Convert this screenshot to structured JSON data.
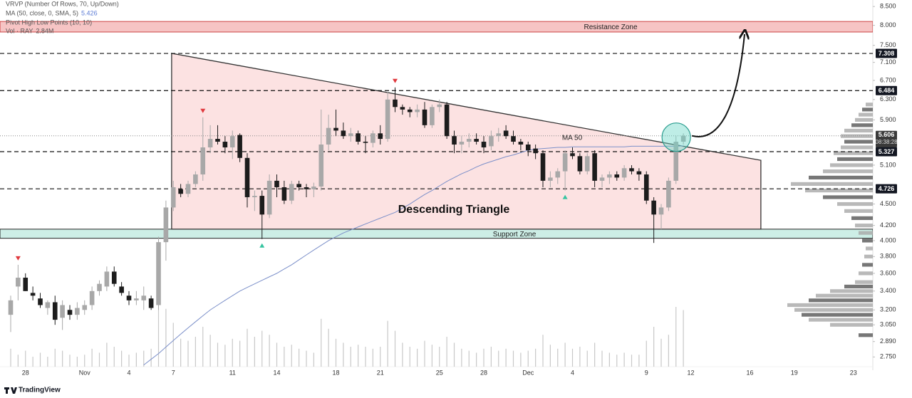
{
  "chart_data": {
    "type": "candlestick",
    "log_scale": true,
    "legend": [
      {
        "text": "VRVP (Number Of Rows, 70, Up/Down)"
      },
      {
        "text": "MA (50, close, 0, SMA, 5)"
      },
      {
        "text": "Pivot High Low Points (10, 10)"
      },
      {
        "text": "Vol · RAY",
        "value": "2.84M"
      }
    ],
    "categories": [
      null,
      null,
      "28",
      null,
      null,
      null,
      null,
      null,
      null,
      null,
      "Nov",
      null,
      null,
      null,
      null,
      null,
      "4",
      null,
      null,
      null,
      null,
      null,
      "7",
      null,
      null,
      null,
      null,
      null,
      null,
      null,
      "11",
      null,
      null,
      null,
      null,
      null,
      "14",
      null,
      null,
      null,
      null,
      null,
      null,
      null,
      "18",
      null,
      null,
      null,
      null,
      null,
      "21",
      null,
      null,
      null,
      null,
      null,
      null,
      null,
      "25",
      null,
      null,
      null,
      null,
      null,
      "28",
      null,
      null,
      null,
      null,
      null,
      "Dec",
      null,
      null,
      null,
      null,
      null,
      "4",
      null,
      null,
      null,
      null,
      null,
      null,
      null,
      null,
      null,
      "9",
      null,
      null,
      null,
      null,
      null,
      "12",
      null,
      null,
      null,
      null,
      null,
      null,
      null,
      "16",
      null,
      null,
      null,
      null,
      null,
      "19",
      null,
      null,
      null,
      null,
      null,
      null,
      null,
      "23",
      null
    ],
    "open": [
      3.15,
      3.45,
      3.55,
      3.38,
      3.32,
      3.22,
      3.28,
      3.12,
      3.2,
      3.15,
      3.2,
      3.25,
      3.4,
      3.45,
      3.62,
      3.45,
      3.35,
      3.3,
      3.3,
      3.32,
      3.25,
      3.98,
      4.45,
      4.72,
      4.65,
      4.8,
      4.95,
      5.4,
      5.55,
      5.5,
      5.4,
      5.62,
      5.22,
      4.6,
      4.62,
      4.35,
      4.85,
      4.75,
      4.55,
      4.8,
      4.75,
      4.72,
      4.76,
      5.45,
      5.75,
      5.7,
      5.6,
      5.65,
      5.5,
      5.48,
      5.65,
      5.55,
      6.3,
      6.15,
      6.1,
      6.05,
      6.1,
      5.8,
      6.15,
      6.2,
      5.6,
      5.45,
      5.5,
      5.55,
      5.5,
      5.42,
      5.6,
      5.7,
      5.6,
      5.5,
      5.45,
      5.38,
      5.3,
      4.85,
      4.9,
      5.0,
      5.3,
      5.25,
      5.0,
      5.3,
      4.85,
      4.9,
      4.95,
      4.9,
      5.05,
      5.0,
      4.95,
      4.55,
      4.35,
      4.45,
      4.85,
      5.5,
      null,
      null,
      null,
      null,
      null,
      null,
      null,
      null,
      null,
      null,
      null,
      null,
      null,
      null,
      null,
      null,
      null,
      null,
      null,
      null,
      null,
      null,
      null,
      null
    ],
    "high": [
      3.35,
      3.7,
      3.6,
      3.45,
      3.38,
      3.3,
      3.35,
      3.3,
      3.25,
      3.28,
      3.3,
      3.45,
      3.52,
      3.68,
      3.68,
      3.5,
      3.4,
      3.4,
      3.45,
      3.35,
      4.05,
      4.55,
      4.85,
      4.8,
      4.85,
      5.0,
      5.95,
      5.8,
      5.8,
      5.6,
      5.7,
      5.65,
      5.3,
      4.7,
      4.7,
      4.95,
      4.95,
      4.85,
      4.85,
      4.85,
      4.8,
      4.82,
      6.1,
      6.0,
      6.1,
      5.85,
      5.75,
      5.7,
      5.6,
      5.7,
      5.8,
      6.45,
      6.55,
      6.2,
      6.15,
      6.2,
      6.25,
      6.2,
      6.3,
      6.25,
      5.7,
      5.6,
      5.65,
      5.65,
      5.6,
      5.7,
      5.75,
      5.8,
      5.7,
      5.55,
      5.5,
      5.45,
      5.35,
      5.0,
      5.05,
      5.35,
      5.4,
      5.3,
      5.3,
      5.35,
      4.95,
      5.0,
      5.0,
      5.1,
      5.1,
      5.05,
      5.0,
      4.6,
      4.5,
      4.9,
      5.6,
      5.65,
      null,
      null,
      null,
      null,
      null,
      null,
      null,
      null,
      null,
      null,
      null,
      null,
      null,
      null,
      null,
      null,
      null,
      null,
      null,
      null,
      null,
      null,
      null,
      null
    ],
    "low": [
      2.98,
      3.3,
      3.4,
      3.3,
      3.22,
      3.15,
      3.05,
      3.0,
      3.1,
      3.1,
      3.15,
      3.2,
      3.35,
      3.4,
      3.45,
      3.35,
      3.25,
      3.25,
      3.2,
      3.2,
      3.2,
      3.75,
      4.4,
      4.6,
      4.6,
      4.75,
      4.85,
      5.3,
      5.45,
      5.3,
      5.2,
      5.15,
      4.45,
      4.4,
      4.02,
      4.3,
      4.6,
      4.5,
      4.5,
      4.7,
      4.6,
      4.6,
      4.7,
      5.35,
      5.6,
      5.55,
      5.5,
      5.45,
      5.3,
      5.4,
      5.45,
      5.5,
      6.05,
      6.0,
      5.95,
      5.95,
      5.75,
      5.75,
      6.05,
      5.55,
      5.3,
      5.3,
      5.4,
      5.45,
      5.3,
      5.35,
      5.5,
      5.55,
      5.45,
      5.35,
      5.25,
      5.2,
      4.75,
      4.75,
      4.8,
      4.7,
      5.2,
      4.95,
      4.95,
      4.75,
      4.75,
      4.8,
      4.85,
      4.85,
      4.95,
      4.85,
      4.5,
      3.97,
      4.15,
      4.4,
      4.8,
      5.45,
      null,
      null,
      null,
      null,
      null,
      null,
      null,
      null,
      null,
      null,
      null,
      null,
      null,
      null,
      null,
      null,
      null,
      null,
      null,
      null,
      null,
      null,
      null,
      null
    ],
    "close": [
      3.3,
      3.55,
      3.4,
      3.35,
      3.25,
      3.28,
      3.1,
      3.25,
      3.15,
      3.22,
      3.25,
      3.4,
      3.48,
      3.62,
      3.48,
      3.38,
      3.3,
      3.32,
      3.35,
      3.22,
      3.98,
      4.45,
      4.75,
      4.65,
      4.8,
      4.95,
      5.4,
      5.55,
      5.5,
      5.4,
      5.6,
      5.22,
      4.6,
      4.62,
      4.35,
      4.85,
      4.75,
      4.55,
      4.8,
      4.75,
      4.72,
      4.76,
      5.45,
      5.75,
      5.7,
      5.6,
      5.65,
      5.5,
      5.48,
      5.65,
      5.55,
      6.3,
      6.15,
      6.1,
      6.05,
      6.1,
      5.8,
      6.15,
      6.2,
      5.6,
      5.45,
      5.5,
      5.55,
      5.5,
      5.4,
      5.6,
      5.65,
      5.6,
      5.5,
      5.45,
      5.35,
      5.3,
      4.85,
      4.9,
      5.0,
      5.3,
      5.25,
      5.0,
      5.25,
      4.85,
      4.9,
      4.95,
      4.9,
      5.05,
      5.0,
      4.95,
      4.55,
      4.35,
      4.45,
      4.85,
      5.5,
      5.606,
      null,
      null,
      null,
      null,
      null,
      null,
      null,
      null,
      null,
      null,
      null,
      null,
      null,
      null,
      null,
      null,
      null,
      null,
      null,
      null,
      null,
      null,
      null,
      null
    ],
    "volume": [
      0.9,
      0.6,
      0.8,
      0.5,
      0.7,
      0.5,
      0.9,
      0.8,
      0.6,
      0.5,
      0.6,
      0.9,
      0.7,
      1.2,
      1.0,
      0.8,
      0.6,
      0.7,
      0.8,
      0.9,
      3.2,
      2.9,
      2.2,
      1.4,
      1.3,
      1.5,
      2.0,
      1.6,
      1.2,
      1.1,
      1.4,
      1.3,
      1.9,
      1.5,
      1.8,
      1.6,
      1.2,
      1.0,
      1.1,
      0.9,
      0.8,
      0.7,
      2.4,
      1.9,
      1.4,
      1.2,
      1.0,
      1.1,
      1.0,
      0.9,
      1.0,
      2.3,
      1.8,
      1.2,
      1.0,
      0.9,
      1.3,
      1.1,
      1.0,
      1.5,
      1.2,
      0.9,
      0.8,
      0.7,
      0.9,
      1.0,
      0.8,
      0.9,
      0.8,
      0.7,
      0.8,
      0.9,
      1.6,
      1.1,
      0.9,
      1.2,
      0.9,
      1.0,
      0.8,
      1.2,
      0.8,
      0.7,
      0.6,
      0.7,
      0.6,
      0.6,
      1.3,
      2.0,
      1.4,
      1.6,
      3.0,
      2.84,
      null,
      null,
      null,
      null,
      null,
      null,
      null,
      null,
      null,
      null,
      null,
      null,
      null,
      null,
      null,
      null,
      null,
      null,
      null,
      null,
      null,
      null,
      null,
      null
    ],
    "up_color": "#a8a8a8",
    "down_color": "#1c1c1c",
    "ma": {
      "label": "MA 50",
      "color": "#7b8fc9",
      "values": [
        null,
        null,
        null,
        null,
        null,
        null,
        null,
        null,
        null,
        null,
        null,
        null,
        null,
        null,
        null,
        null,
        null,
        null,
        2.68,
        2.73,
        2.78,
        2.84,
        2.9,
        2.96,
        3.02,
        3.08,
        3.14,
        3.2,
        3.25,
        3.3,
        3.35,
        3.4,
        3.44,
        3.48,
        3.52,
        3.56,
        3.6,
        3.65,
        3.7,
        3.76,
        3.82,
        3.88,
        3.94,
        4.0,
        4.05,
        4.1,
        4.14,
        4.18,
        4.22,
        4.26,
        4.3,
        4.34,
        4.38,
        4.44,
        4.5,
        4.57,
        4.64,
        4.7,
        4.77,
        4.84,
        4.9,
        4.96,
        5.01,
        5.07,
        5.12,
        5.16,
        5.2,
        5.24,
        5.27,
        5.31,
        5.35,
        5.37,
        5.38,
        5.39,
        5.4,
        5.4,
        5.41,
        5.41,
        5.41,
        5.41,
        5.41,
        5.41,
        5.41,
        5.41,
        5.42,
        5.42,
        5.42,
        5.42,
        5.42,
        5.42,
        5.42,
        5.426,
        null,
        null,
        null,
        null,
        null,
        null,
        null,
        null,
        null,
        null,
        null,
        null,
        null,
        null,
        null,
        null,
        null,
        null,
        null,
        null,
        null,
        null,
        null,
        null
      ]
    },
    "pivot_highs": [
      1,
      26,
      52
    ],
    "pivot_lows": [
      34,
      75
    ],
    "levels": [
      7.308,
      6.484,
      5.327,
      4.726
    ],
    "countdown": "08:38:28",
    "zones": [
      {
        "label": "Resistance Zone",
        "range": [
          7.83,
          8.1
        ],
        "color": "#f6c4c4"
      },
      {
        "label": "Support Zone",
        "range": [
          4.03,
          4.15
        ],
        "color": "#cdeee6"
      }
    ],
    "triangle": {
      "label": "Descending Triangle",
      "upper": [
        7.31,
        5.18
      ],
      "lower": 4.15
    },
    "volume_profile": {
      "prices": [
        2.95,
        3.05,
        3.1,
        3.15,
        3.2,
        3.25,
        3.3,
        3.35,
        3.4,
        3.45,
        3.5,
        3.6,
        3.7,
        3.8,
        3.9,
        4.0,
        4.1,
        4.2,
        4.3,
        4.4,
        4.5,
        4.6,
        4.7,
        4.8,
        4.9,
        5.0,
        5.1,
        5.2,
        5.3,
        5.4,
        5.5,
        5.6,
        5.7,
        5.8,
        5.9,
        6.0,
        6.1,
        6.2
      ],
      "values": [
        20,
        60,
        90,
        100,
        110,
        120,
        90,
        80,
        60,
        40,
        25,
        20,
        15,
        12,
        10,
        15,
        20,
        25,
        30,
        40,
        50,
        70,
        95,
        115,
        90,
        70,
        60,
        50,
        55,
        45,
        40,
        45,
        40,
        30,
        25,
        20,
        15,
        10
      ]
    },
    "ylim": [
      2.635,
      8.68
    ],
    "yticks": [
      {
        "value": 8.5,
        "label": "8.500"
      },
      {
        "value": 8.0,
        "label": "8.000"
      },
      {
        "value": 7.5,
        "label": "7.500"
      },
      {
        "value": 7.1,
        "label": "7.100"
      },
      {
        "value": 6.7,
        "label": "6.700"
      },
      {
        "value": 6.3,
        "label": "6.300"
      },
      {
        "value": 5.9,
        "label": "5.900"
      },
      {
        "value": 5.1,
        "label": "5.100"
      },
      {
        "value": 4.5,
        "label": "4.500"
      },
      {
        "value": 4.2,
        "label": "4.200"
      },
      {
        "value": 4.0,
        "label": "4.000"
      },
      {
        "value": 3.8,
        "label": "3.800"
      },
      {
        "value": 3.6,
        "label": "3.600"
      },
      {
        "value": 3.4,
        "label": "3.400"
      },
      {
        "value": 3.2,
        "label": "3.200"
      },
      {
        "value": 3.05,
        "label": "3.050"
      },
      {
        "value": 2.89,
        "label": "2.890"
      },
      {
        "value": 2.75,
        "label": "2.750"
      }
    ],
    "footer": "TradingView"
  }
}
